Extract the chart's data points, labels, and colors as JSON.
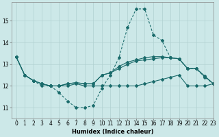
{
  "background_color": "#cce8e8",
  "grid_color": "#b0d0d0",
  "line_color": "#1a6b6b",
  "xlabel": "Humidex (Indice chaleur)",
  "xlim": [
    -0.5,
    23
  ],
  "ylim": [
    10.5,
    15.85
  ],
  "yticks": [
    11,
    12,
    13,
    14,
    15
  ],
  "xticks": [
    0,
    1,
    2,
    3,
    4,
    5,
    6,
    7,
    8,
    9,
    10,
    11,
    12,
    13,
    14,
    15,
    16,
    17,
    18,
    19,
    20,
    21,
    22,
    23
  ],
  "line1_x": [
    0,
    1,
    2,
    3,
    4,
    5,
    6,
    7,
    8,
    9,
    10,
    11,
    12,
    13,
    14,
    15,
    16,
    17,
    18,
    19,
    20,
    21,
    22,
    23
  ],
  "line1_y": [
    13.35,
    12.5,
    12.25,
    12.0,
    12.0,
    11.7,
    11.3,
    11.0,
    11.0,
    11.1,
    11.9,
    12.5,
    13.3,
    14.7,
    15.55,
    15.55,
    14.35,
    14.1,
    13.3,
    13.25,
    12.8,
    12.8,
    12.4,
    12.1
  ],
  "line2_x": [
    0,
    1,
    2,
    3,
    4,
    5,
    6,
    7,
    8,
    9,
    10,
    11,
    12,
    13,
    14,
    15,
    16,
    17,
    18,
    19,
    20,
    21,
    22,
    23
  ],
  "line2_y": [
    13.35,
    12.5,
    12.25,
    12.1,
    12.0,
    12.0,
    12.0,
    12.1,
    12.0,
    12.0,
    12.0,
    12.0,
    12.0,
    12.0,
    12.0,
    12.1,
    12.2,
    12.3,
    12.4,
    12.5,
    12.0,
    12.0,
    12.0,
    12.1
  ],
  "line3_x": [
    0,
    1,
    2,
    3,
    4,
    5,
    6,
    7,
    8,
    9,
    10,
    11,
    12,
    13,
    14,
    15,
    16,
    17,
    18,
    19,
    20,
    21,
    22,
    23
  ],
  "line3_y": [
    13.35,
    12.5,
    12.25,
    12.1,
    12.0,
    12.0,
    12.1,
    12.15,
    12.1,
    12.1,
    12.5,
    12.6,
    12.8,
    13.0,
    13.15,
    13.2,
    13.25,
    13.3,
    13.3,
    13.25,
    12.8,
    12.8,
    12.45,
    12.1
  ],
  "line4_x": [
    0,
    1,
    2,
    3,
    4,
    5,
    6,
    7,
    8,
    9,
    10,
    11,
    12,
    13,
    14,
    15,
    16,
    17,
    18,
    19,
    20,
    21,
    22,
    23
  ],
  "line4_y": [
    13.35,
    12.5,
    12.25,
    12.1,
    12.0,
    12.0,
    12.1,
    12.15,
    12.1,
    12.1,
    12.5,
    12.6,
    12.9,
    13.1,
    13.2,
    13.3,
    13.35,
    13.35,
    13.3,
    13.25,
    12.8,
    12.8,
    12.45,
    12.1
  ]
}
